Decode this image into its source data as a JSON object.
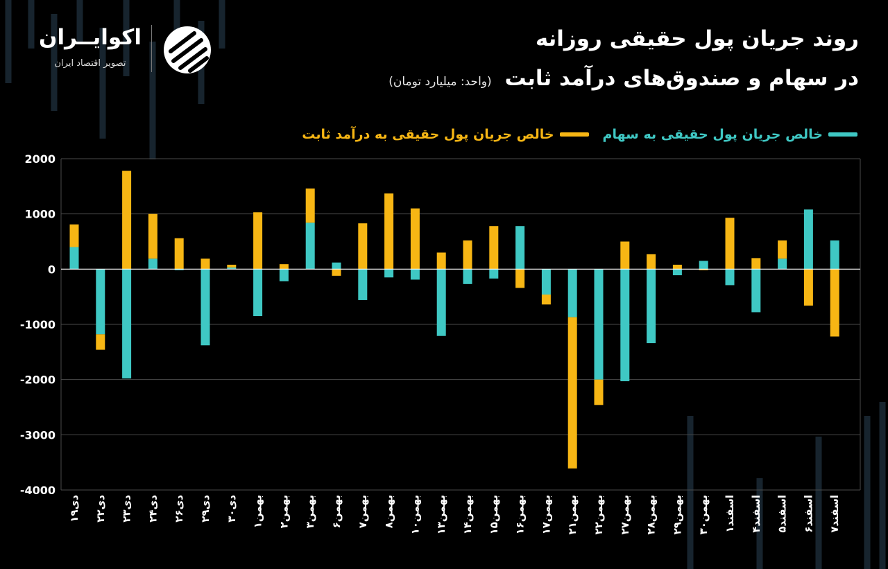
{
  "header": {
    "title_line1": "روند جریان پول حقیقی روزانه",
    "title_line2": "در سهام و صندوق‌های درآمد ثابت",
    "unit": "(واحد: میلیارد تومان)"
  },
  "logo": {
    "name": "اکوایــران",
    "tagline": "تصویر اقتصاد ایران"
  },
  "colors": {
    "background": "#000000",
    "stocks": "#3fc8c4",
    "fixed_income": "#f7b614",
    "grid": "#4a4a4a",
    "axis_text": "#ffffff"
  },
  "chart_data": {
    "type": "bar",
    "stacked": true,
    "grid": true,
    "legend_position": "top-right",
    "ylim": [
      -4000,
      2000
    ],
    "yticks": [
      {
        "value": 2000,
        "label": "2000"
      },
      {
        "value": 1000,
        "label": "1000"
      },
      {
        "value": 0,
        "label": "0"
      },
      {
        "value": -1000,
        "label": "-1000"
      },
      {
        "value": -2000,
        "label": "-2000"
      },
      {
        "value": -3000,
        "label": "-3000"
      },
      {
        "value": -4000,
        "label": "-4000"
      }
    ],
    "categories": [
      "۱۹دی",
      "۲۲دی",
      "۲۳دی",
      "۲۴دی",
      "۲۶دی",
      "۲۹دی",
      "۳۰دی",
      "بهمن۱",
      "بهمن۲",
      "بهمن۳",
      "بهمن۶",
      "بهمن۷",
      "بهمن۸",
      "بهمن۱۰",
      "بهمن۱۳",
      "بهمن۱۴",
      "بهمن۱۵",
      "بهمن۱۶",
      "بهمن۱۷",
      "بهمن۲۱",
      "بهمن۲۲",
      "بهمن۲۷",
      "بهمن۲۸",
      "بهمن۲۹",
      "بهمن۳۰",
      "اسفند۱",
      "اسفند۴",
      "اسفند۵",
      "اسفند۶",
      "اسفند۷"
    ],
    "series": [
      {
        "name": "خالص جریان پول حقیقی به سهام",
        "color": "#3fc8c4",
        "values": [
          400,
          -1180,
          -1980,
          190,
          -20,
          -1380,
          30,
          -850,
          -220,
          840,
          120,
          -560,
          -150,
          -190,
          -1210,
          -270,
          -170,
          780,
          -460,
          -870,
          -2000,
          -2030,
          -1340,
          -110,
          150,
          -290,
          -780,
          190,
          1080,
          520
        ]
      },
      {
        "name": "خالص جریان پول حقیقی به درآمد ثابت",
        "color": "#f7b614",
        "values": [
          410,
          -280,
          1780,
          810,
          560,
          190,
          50,
          1030,
          90,
          620,
          -120,
          830,
          1370,
          1100,
          300,
          520,
          780,
          -340,
          -180,
          -2740,
          -460,
          500,
          270,
          80,
          -20,
          930,
          200,
          330,
          -660,
          -1220
        ]
      }
    ]
  }
}
